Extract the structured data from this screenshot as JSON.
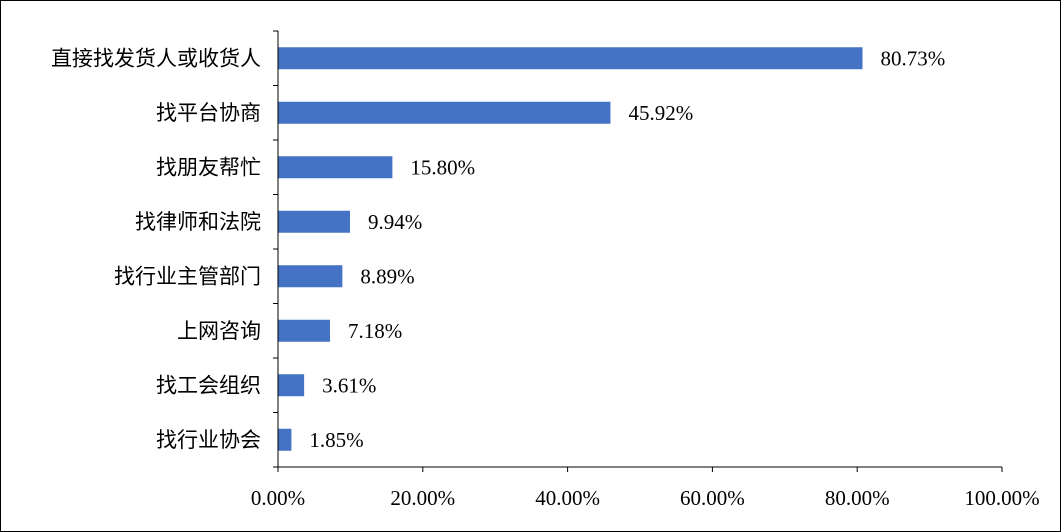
{
  "chart_data": {
    "type": "bar",
    "orientation": "horizontal",
    "categories": [
      "直接找发货人或收货人",
      "找平台协商",
      "找朋友帮忙",
      "找律师和法院",
      "找行业主管部门",
      "上网咨询",
      "找工会组织",
      "找行业协会"
    ],
    "values": [
      80.73,
      45.92,
      15.8,
      9.94,
      8.89,
      7.18,
      3.61,
      1.85
    ],
    "value_labels": [
      "80.73%",
      "45.92%",
      "15.80%",
      "9.94%",
      "8.89%",
      "7.18%",
      "3.61%",
      "1.85%"
    ],
    "x_ticks": [
      "0.00%",
      "20.00%",
      "40.00%",
      "60.00%",
      "80.00%",
      "100.00%"
    ],
    "xlim": [
      0,
      100
    ],
    "grid": false,
    "bar_color": "#4472C4",
    "axis_color": "#000000"
  }
}
